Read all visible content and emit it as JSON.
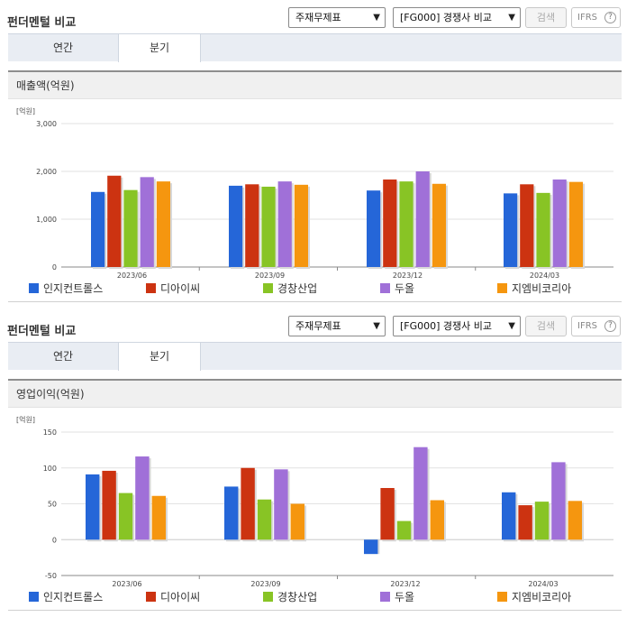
{
  "panels": [
    {
      "header": {
        "title": "펀더멘털 비교",
        "select_statement": "주재무제표",
        "select_peer": "[FG000] 경쟁사 비교",
        "search_label": "검색",
        "ifrs_label": "IFRS",
        "help_glyph": "?"
      },
      "tabs": [
        {
          "label": "연간",
          "active": false
        },
        {
          "label": "분기",
          "active": true
        }
      ],
      "section_title": "매출액(억원)",
      "unit_label": "[억원]"
    },
    {
      "header": {
        "title": "펀더멘털 비교",
        "select_statement": "주재무제표",
        "select_peer": "[FG000] 경쟁사 비교",
        "search_label": "검색",
        "ifrs_label": "IFRS",
        "help_glyph": "?"
      },
      "tabs": [
        {
          "label": "연간",
          "active": false
        },
        {
          "label": "분기",
          "active": true
        }
      ],
      "section_title": "영업이익(억원)",
      "unit_label": "[억원]"
    }
  ],
  "legend": [
    {
      "name": "인지컨트롤스",
      "color": "#2566d8"
    },
    {
      "name": "디아이씨",
      "color": "#cc3311"
    },
    {
      "name": "경창산업",
      "color": "#88c425"
    },
    {
      "name": "두올",
      "color": "#a070d8"
    },
    {
      "name": "지엠비코리아",
      "color": "#f5960f"
    }
  ],
  "chart_data": [
    {
      "type": "bar",
      "title": "매출액(억원)",
      "ylabel": "[억원]",
      "categories": [
        "2023/06",
        "2023/09",
        "2023/12",
        "2024/03"
      ],
      "ylim": [
        0,
        3000
      ],
      "yticks": [
        0,
        1000,
        2000,
        3000
      ],
      "ytick_labels": [
        "0",
        "1,000",
        "2,000",
        "3,000"
      ],
      "grid": true,
      "legend_position": "bottom",
      "series": [
        {
          "name": "인지컨트롤스",
          "color": "#2566d8",
          "values": [
            1570,
            1700,
            1600,
            1540
          ]
        },
        {
          "name": "디아이씨",
          "color": "#cc3311",
          "values": [
            1910,
            1730,
            1830,
            1730
          ]
        },
        {
          "name": "경창산업",
          "color": "#88c425",
          "values": [
            1610,
            1680,
            1790,
            1550
          ]
        },
        {
          "name": "두올",
          "color": "#a070d8",
          "values": [
            1880,
            1790,
            2000,
            1830
          ]
        },
        {
          "name": "지엠비코리아",
          "color": "#f5960f",
          "values": [
            1790,
            1720,
            1740,
            1780
          ]
        }
      ]
    },
    {
      "type": "bar",
      "title": "영업이익(억원)",
      "ylabel": "[억원]",
      "categories": [
        "2023/06",
        "2023/09",
        "2023/12",
        "2024/03"
      ],
      "ylim": [
        -50,
        150
      ],
      "yticks": [
        -50,
        0,
        50,
        100,
        150
      ],
      "ytick_labels": [
        "-50",
        "0",
        "50",
        "100",
        "150"
      ],
      "grid": true,
      "legend_position": "bottom",
      "series": [
        {
          "name": "인지컨트롤스",
          "color": "#2566d8",
          "values": [
            91,
            74,
            -20,
            66
          ]
        },
        {
          "name": "디아이씨",
          "color": "#cc3311",
          "values": [
            96,
            100,
            72,
            48
          ]
        },
        {
          "name": "경창산업",
          "color": "#88c425",
          "values": [
            65,
            56,
            26,
            53
          ]
        },
        {
          "name": "두올",
          "color": "#a070d8",
          "values": [
            116,
            98,
            129,
            108
          ]
        },
        {
          "name": "지엠비코리아",
          "color": "#f5960f",
          "values": [
            61,
            50,
            55,
            54
          ]
        }
      ]
    }
  ]
}
